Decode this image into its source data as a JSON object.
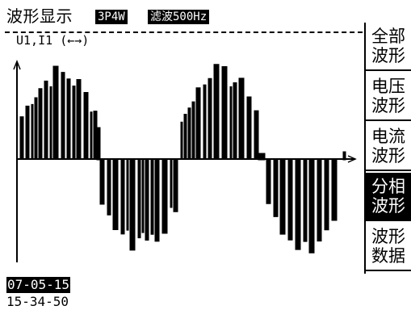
{
  "header": {
    "title": "波形显示",
    "wiring": "3P4W",
    "filter": "滤波500Hz"
  },
  "plot": {
    "channel_label": "U1,I1",
    "zoom_indicator": "(←→)"
  },
  "menu": {
    "items": [
      {
        "label": "全部\n波形",
        "active": false
      },
      {
        "label": "电压\n波形",
        "active": false
      },
      {
        "label": "电流\n波形",
        "active": false
      },
      {
        "label": "分相\n波形",
        "active": true
      },
      {
        "label": "波形\n数据",
        "active": false
      }
    ]
  },
  "footer": {
    "date": "07-05-15",
    "time": "15-34-50"
  }
}
